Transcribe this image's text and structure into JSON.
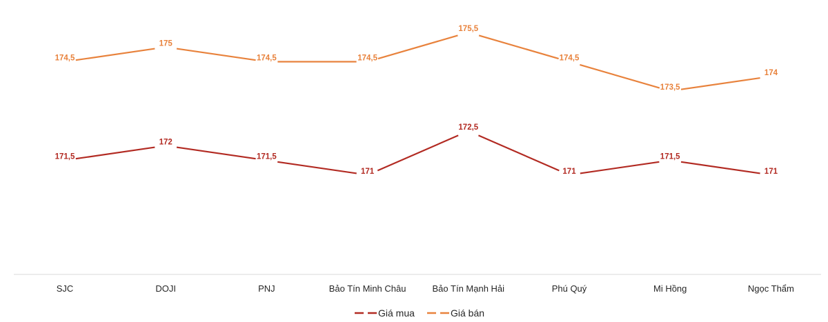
{
  "chart_data": {
    "type": "line",
    "title": "",
    "xlabel": "",
    "ylabel": "",
    "categories": [
      "SJC",
      "DOJI",
      "PNJ",
      "Bảo Tín Minh Châu",
      "Bảo Tín Mạnh Hải",
      "Phú Quý",
      "Mi Hồng",
      "Ngọc Thẩm"
    ],
    "series": [
      {
        "name": "Giá mua",
        "color": "#B22A22",
        "values": [
          171.5,
          172,
          171.5,
          171,
          172.5,
          171,
          171.5,
          171
        ],
        "labels": [
          "171,5",
          "172",
          "171,5",
          "171",
          "172,5",
          "171",
          "171,5",
          "171"
        ]
      },
      {
        "name": "Giá bán",
        "color": "#E8823C",
        "values": [
          174.5,
          175,
          174.5,
          174.5,
          175.5,
          174.5,
          173.5,
          174
        ],
        "labels": [
          "174,5",
          "175",
          "174,5",
          "174,5",
          "175,5",
          "174,5",
          "173,5",
          "174"
        ]
      }
    ],
    "grid": false,
    "axis_visible": false,
    "data_labels": true,
    "legend_position": "bottom"
  },
  "legend": {
    "items": [
      {
        "label": "Giá mua",
        "color": "#B22A22"
      },
      {
        "label": "Giá bán",
        "color": "#E8823C"
      }
    ]
  },
  "colors": {
    "axis_line": "#D9D9D9",
    "category_text": "#262626"
  }
}
